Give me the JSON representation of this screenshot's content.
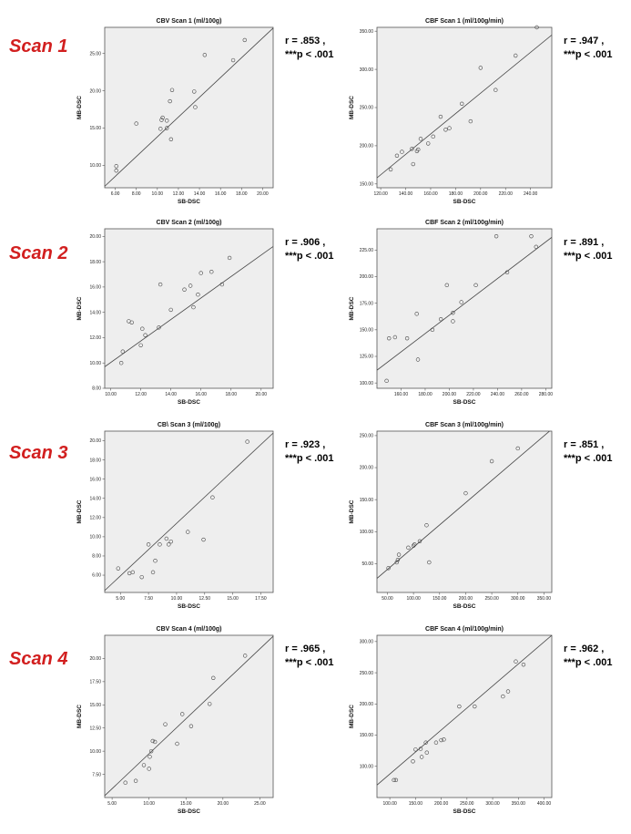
{
  "scan_labels": [
    "Scan 1",
    "Scan 2",
    "Scan 3",
    "Scan 4"
  ],
  "chart_data": [
    {
      "type": "scatter",
      "row": 0,
      "col": 0,
      "title": "CBV Scan 1  (ml/100g)",
      "xlabel": "SB-DSC",
      "ylabel": "MB-DSC",
      "xlim": [
        5.0,
        21.0
      ],
      "ylim": [
        7.0,
        28.5
      ],
      "xticks": [
        6,
        8,
        10,
        12,
        14,
        16,
        18,
        20
      ],
      "xtick_labels": [
        "6.00",
        "8.00",
        "10.00",
        "12.00",
        "14.00",
        "16.00",
        "18.00",
        "20.00"
      ],
      "yticks": [
        10,
        15,
        20,
        25
      ],
      "ytick_labels": [
        "10.00",
        "15.00",
        "20.00",
        "25.00"
      ],
      "x": [
        6.1,
        6.1,
        8.0,
        10.3,
        10.4,
        10.5,
        10.9,
        10.9,
        11.2,
        11.3,
        11.4,
        13.5,
        13.6,
        14.5,
        17.2,
        18.3
      ],
      "y": [
        9.3,
        9.9,
        15.6,
        14.9,
        16.1,
        16.4,
        15.0,
        16.0,
        18.6,
        13.5,
        20.1,
        19.9,
        17.8,
        24.8,
        24.1,
        26.8
      ],
      "fit": [
        [
          5.0,
          7.2
        ],
        [
          21.0,
          28.4
        ]
      ],
      "stats": [
        "r = .853 ,",
        "***p < .001"
      ]
    },
    {
      "type": "scatter",
      "row": 0,
      "col": 1,
      "title": "CBF Scan 1    (ml/100g/min)",
      "xlabel": "SB-DSC",
      "ylabel": "MB-DSC",
      "xlim": [
        117.0,
        257.0
      ],
      "ylim": [
        145.0,
        355.0
      ],
      "xticks": [
        120,
        140,
        160,
        180,
        200,
        220,
        240
      ],
      "xtick_labels": [
        "120.00",
        "140.00",
        "160.00",
        "180.00",
        "200.00",
        "220.00",
        "240.00"
      ],
      "yticks": [
        150,
        200,
        250,
        300,
        350
      ],
      "ytick_labels": [
        "150.00",
        "200.00",
        "250.00",
        "300.00",
        "350.00"
      ],
      "x": [
        128,
        133,
        137,
        145,
        146,
        149,
        150,
        152,
        158,
        162,
        168,
        172,
        175,
        185,
        192,
        200,
        212,
        228,
        245
      ],
      "y": [
        169,
        187,
        192,
        196,
        176,
        193,
        195,
        209,
        203,
        212,
        238,
        221,
        223,
        255,
        232,
        302,
        273,
        318,
        355
      ],
      "fit": [
        [
          117.0,
          158.0
        ],
        [
          257.0,
          345.0
        ]
      ],
      "stats": [
        "r = .947 ,",
        "***p < .001"
      ]
    },
    {
      "type": "scatter",
      "row": 1,
      "col": 0,
      "title": "CBV Scan 2  (ml/100g)",
      "xlabel": "SB-DSC",
      "ylabel": "MB-DSC",
      "xlim": [
        9.6,
        20.8
      ],
      "ylim": [
        8.0,
        20.6
      ],
      "xticks": [
        10,
        12,
        14,
        16,
        18,
        20
      ],
      "xtick_labels": [
        "10.00",
        "12.00",
        "14.00",
        "16.00",
        "18.00",
        "20.00"
      ],
      "yticks": [
        8,
        10,
        12,
        14,
        16,
        18,
        20
      ],
      "ytick_labels": [
        "8.00",
        "10.00",
        "12.00",
        "14.00",
        "16.00",
        "18.00",
        "20.00"
      ],
      "x": [
        10.7,
        10.8,
        11.2,
        11.4,
        12.0,
        12.1,
        12.3,
        13.2,
        13.3,
        14.0,
        14.9,
        15.3,
        15.5,
        15.8,
        16.0,
        16.7,
        17.4,
        17.9
      ],
      "y": [
        10.0,
        10.9,
        13.3,
        13.2,
        11.4,
        12.7,
        12.2,
        12.8,
        16.2,
        14.2,
        15.8,
        16.1,
        14.4,
        15.4,
        17.1,
        17.2,
        16.2,
        18.3
      ],
      "fit": [
        [
          9.6,
          9.7
        ],
        [
          20.8,
          19.2
        ]
      ],
      "stats": [
        "r = .906 ,",
        "***p < .001"
      ]
    },
    {
      "type": "scatter",
      "row": 1,
      "col": 1,
      "title": "CBF Scan 2    (ml/100g/min)",
      "xlabel": "SB-DSC",
      "ylabel": "MB-DSC",
      "xlim": [
        140.0,
        285.0
      ],
      "ylim": [
        95.0,
        245.0
      ],
      "xticks": [
        160,
        180,
        200,
        220,
        240,
        260,
        280
      ],
      "xtick_labels": [
        "160.00",
        "180.00",
        "200.00",
        "220.00",
        "240.00",
        "260.00",
        "280.00"
      ],
      "yticks": [
        100,
        125,
        150,
        175,
        200,
        225
      ],
      "ytick_labels": [
        "100.00",
        "125.00",
        "150.00",
        "175.00",
        "200.00",
        "225.00"
      ],
      "x": [
        148,
        150,
        155,
        165,
        173,
        174,
        186,
        193,
        198,
        203,
        203,
        210,
        222,
        239,
        248,
        268,
        272
      ],
      "y": [
        102,
        142,
        143,
        142,
        165,
        122,
        150,
        160,
        192,
        166,
        158,
        176,
        192,
        238,
        204,
        238,
        228
      ],
      "fit": [
        [
          140.0,
          112.0
        ],
        [
          285.0,
          237.0
        ]
      ],
      "stats": [
        "r = .891 ,",
        "***p < .001"
      ]
    },
    {
      "type": "scatter",
      "row": 2,
      "col": 0,
      "title": "CB\\ Scan 3  (ml/100g)",
      "xlabel": "SB-DSC",
      "ylabel": "MB-DSC",
      "xlim": [
        3.6,
        18.6
      ],
      "ylim": [
        4.2,
        21.0
      ],
      "xticks": [
        5,
        7.5,
        10,
        12.5,
        15,
        17.5
      ],
      "xtick_labels": [
        "5.00",
        "7.50",
        "10.00",
        "12.50",
        "15.00",
        "17.50"
      ],
      "yticks": [
        6,
        8,
        10,
        12,
        14,
        16,
        18,
        20
      ],
      "ytick_labels": [
        "6.00",
        "8.00",
        "10.00",
        "12.00",
        "14.00",
        "16.00",
        "18.00",
        "20.00"
      ],
      "x": [
        4.8,
        5.8,
        6.1,
        6.9,
        7.5,
        7.9,
        8.1,
        8.5,
        9.1,
        9.3,
        9.5,
        11.0,
        12.4,
        13.2,
        16.3
      ],
      "y": [
        6.7,
        6.2,
        6.3,
        5.8,
        9.2,
        6.3,
        7.5,
        9.2,
        9.8,
        9.2,
        9.5,
        10.5,
        9.7,
        14.1,
        19.9
      ],
      "fit": [
        [
          3.6,
          4.4
        ],
        [
          18.6,
          20.8
        ]
      ],
      "stats": [
        "r = .923 ,",
        "***p < .001"
      ]
    },
    {
      "type": "scatter",
      "row": 2,
      "col": 1,
      "title": "CBF Scan 3    (ml/100g/min)",
      "xlabel": "SB-DSC",
      "ylabel": "MB-DSC",
      "xlim": [
        30.0,
        365.0
      ],
      "ylim": [
        5.0,
        257.0
      ],
      "xticks": [
        50,
        100,
        150,
        200,
        250,
        300,
        350
      ],
      "xtick_labels": [
        "50.00",
        "100.00",
        "150.00",
        "200.00",
        "250.00",
        "300.00",
        "350.00"
      ],
      "yticks": [
        50,
        100,
        150,
        200,
        250
      ],
      "ytick_labels": [
        "50.00",
        "100.00",
        "150.00",
        "200.00",
        "250.00"
      ],
      "x": [
        52,
        68,
        70,
        72,
        90,
        100,
        102,
        112,
        125,
        130,
        200,
        250,
        300
      ],
      "y": [
        43,
        52,
        56,
        64,
        75,
        78,
        80,
        85,
        110,
        52,
        160,
        210,
        230
      ],
      "fit": [
        [
          30.0,
          27.0
        ],
        [
          365.0,
          260.0
        ]
      ],
      "stats": [
        "r = .851 ,",
        "***p < .001"
      ]
    },
    {
      "type": "scatter",
      "row": 3,
      "col": 0,
      "title": "CBV Scan 4   (ml/100g)",
      "xlabel": "SB-DSC",
      "ylabel": "MB-DSC",
      "xlim": [
        4.0,
        26.8
      ],
      "ylim": [
        5.0,
        22.5
      ],
      "xticks": [
        5,
        10,
        15,
        20,
        25
      ],
      "xtick_labels": [
        "5.00",
        "10.00",
        "15.00",
        "20.00",
        "25.00"
      ],
      "yticks": [
        7.5,
        10,
        12.5,
        15,
        17.5,
        20
      ],
      "ytick_labels": [
        "7.50",
        "10.00",
        "12.50",
        "15.00",
        "17.50",
        "20.00"
      ],
      "x": [
        6.8,
        8.2,
        9.3,
        10.0,
        10.1,
        10.3,
        10.5,
        10.8,
        12.2,
        13.8,
        14.5,
        15.7,
        18.2,
        18.7,
        23.0
      ],
      "y": [
        6.6,
        6.8,
        8.5,
        8.1,
        9.4,
        10.0,
        11.1,
        11.0,
        12.9,
        10.8,
        14.0,
        12.7,
        15.1,
        17.9,
        20.3
      ],
      "fit": [
        [
          4.0,
          5.2
        ],
        [
          26.8,
          22.4
        ]
      ],
      "stats": [
        "r = .965 ,",
        "***p < .001"
      ]
    },
    {
      "type": "scatter",
      "row": 3,
      "col": 1,
      "title": "CBF Scan 4    (ml/100g/min)",
      "xlabel": "SB-DSC",
      "ylabel": "MB-DSC",
      "xlim": [
        75.0,
        415.0
      ],
      "ylim": [
        50.0,
        310.0
      ],
      "xticks": [
        100,
        150,
        200,
        250,
        300,
        350,
        400
      ],
      "xtick_labels": [
        "100.00",
        "150.00",
        "200.00",
        "250.00",
        "300.00",
        "350.00",
        "400.00"
      ],
      "yticks": [
        100,
        150,
        200,
        250,
        300
      ],
      "ytick_labels": [
        "100.00",
        "150.00",
        "200.00",
        "250.00",
        "300.00"
      ],
      "x": [
        108,
        112,
        145,
        150,
        160,
        162,
        170,
        172,
        190,
        200,
        205,
        235,
        265,
        320,
        330,
        345,
        360
      ],
      "y": [
        78,
        78,
        108,
        127,
        128,
        115,
        138,
        122,
        138,
        142,
        143,
        196,
        196,
        212,
        220,
        268,
        263
      ],
      "fit": [
        [
          75.0,
          70.0
        ],
        [
          415.0,
          310.0
        ]
      ],
      "stats": [
        "r = .962 ,",
        "***p < .001"
      ]
    }
  ]
}
